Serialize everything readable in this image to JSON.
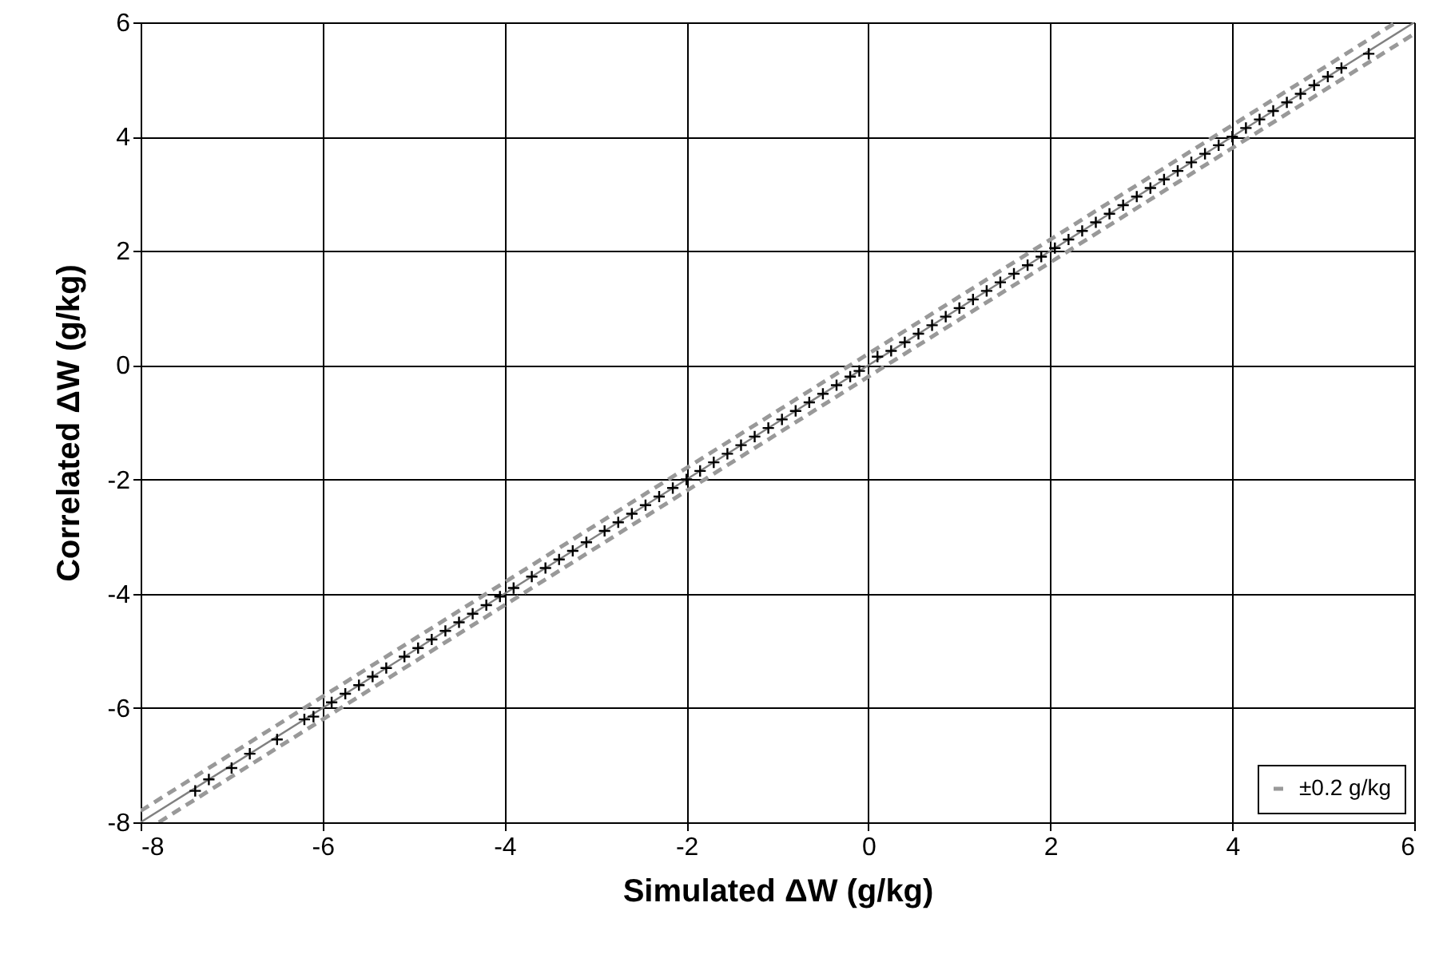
{
  "chart_data": {
    "type": "scatter",
    "xlabel": "Simulated ΔW (g/kg)",
    "ylabel": "Correlated ΔW (g/kg)",
    "xlim": [
      -8,
      6
    ],
    "ylim": [
      -8,
      6
    ],
    "xticks": [
      -8,
      -6,
      -4,
      -2,
      0,
      2,
      4,
      6
    ],
    "yticks": [
      -8,
      -6,
      -4,
      -2,
      0,
      2,
      4,
      6
    ],
    "grid": true,
    "legend": "bottom right",
    "series": [
      {
        "type": "line",
        "color": "#808080",
        "line_style": "solid",
        "x": [
          -8,
          6
        ],
        "values": [
          -8,
          6
        ]
      },
      {
        "type": "line",
        "name": "±0.2 g/kg",
        "color": "#999999",
        "line_style": "dashed",
        "x": [
          -8,
          5.8
        ],
        "values": [
          -7.8,
          6
        ]
      },
      {
        "type": "line",
        "color": "#999999",
        "line_style": "dashed",
        "x": [
          -7.8,
          6
        ],
        "values": [
          -8,
          5.8
        ]
      },
      {
        "color": "#000000",
        "marker": "cross",
        "x": [
          -7.4,
          -7.25,
          -7.0,
          -6.8,
          -6.5,
          -6.2,
          -6.1,
          -5.9,
          -5.75,
          -5.6,
          -5.45,
          -5.3,
          -5.1,
          -4.95,
          -4.8,
          -4.65,
          -4.5,
          -4.35,
          -4.2,
          -4.05,
          -3.9,
          -3.7,
          -3.55,
          -3.4,
          -3.25,
          -3.1,
          -2.9,
          -2.75,
          -2.6,
          -2.45,
          -2.3,
          -2.15,
          -2.0,
          -1.85,
          -1.7,
          -1.55,
          -1.4,
          -1.25,
          -1.1,
          -0.95,
          -0.8,
          -0.65,
          -0.5,
          -0.35,
          -0.2,
          -0.1,
          0.1,
          0.25,
          0.4,
          0.55,
          0.7,
          0.85,
          1.0,
          1.15,
          1.3,
          1.45,
          1.6,
          1.75,
          1.9,
          2.05,
          2.2,
          2.35,
          2.5,
          2.65,
          2.8,
          2.95,
          3.1,
          3.25,
          3.4,
          3.55,
          3.7,
          3.85,
          4.0,
          4.15,
          4.3,
          4.45,
          4.6,
          4.75,
          4.9,
          5.05,
          5.2,
          5.5
        ],
        "values": [
          -7.45,
          -7.25,
          -7.05,
          -6.8,
          -6.55,
          -6.2,
          -6.15,
          -5.9,
          -5.75,
          -5.6,
          -5.45,
          -5.3,
          -5.1,
          -4.95,
          -4.8,
          -4.65,
          -4.5,
          -4.35,
          -4.2,
          -4.05,
          -3.9,
          -3.7,
          -3.55,
          -3.4,
          -3.25,
          -3.1,
          -2.9,
          -2.75,
          -2.6,
          -2.45,
          -2.3,
          -2.15,
          -2.0,
          -1.85,
          -1.7,
          -1.55,
          -1.4,
          -1.25,
          -1.1,
          -0.95,
          -0.8,
          -0.65,
          -0.5,
          -0.35,
          -0.2,
          -0.1,
          0.15,
          0.25,
          0.4,
          0.55,
          0.7,
          0.85,
          1.0,
          1.15,
          1.3,
          1.45,
          1.6,
          1.75,
          1.9,
          2.05,
          2.2,
          2.35,
          2.5,
          2.65,
          2.8,
          2.95,
          3.1,
          3.25,
          3.4,
          3.55,
          3.7,
          3.85,
          4.0,
          4.15,
          4.3,
          4.45,
          4.6,
          4.75,
          4.9,
          5.05,
          5.2,
          5.45
        ]
      }
    ]
  }
}
